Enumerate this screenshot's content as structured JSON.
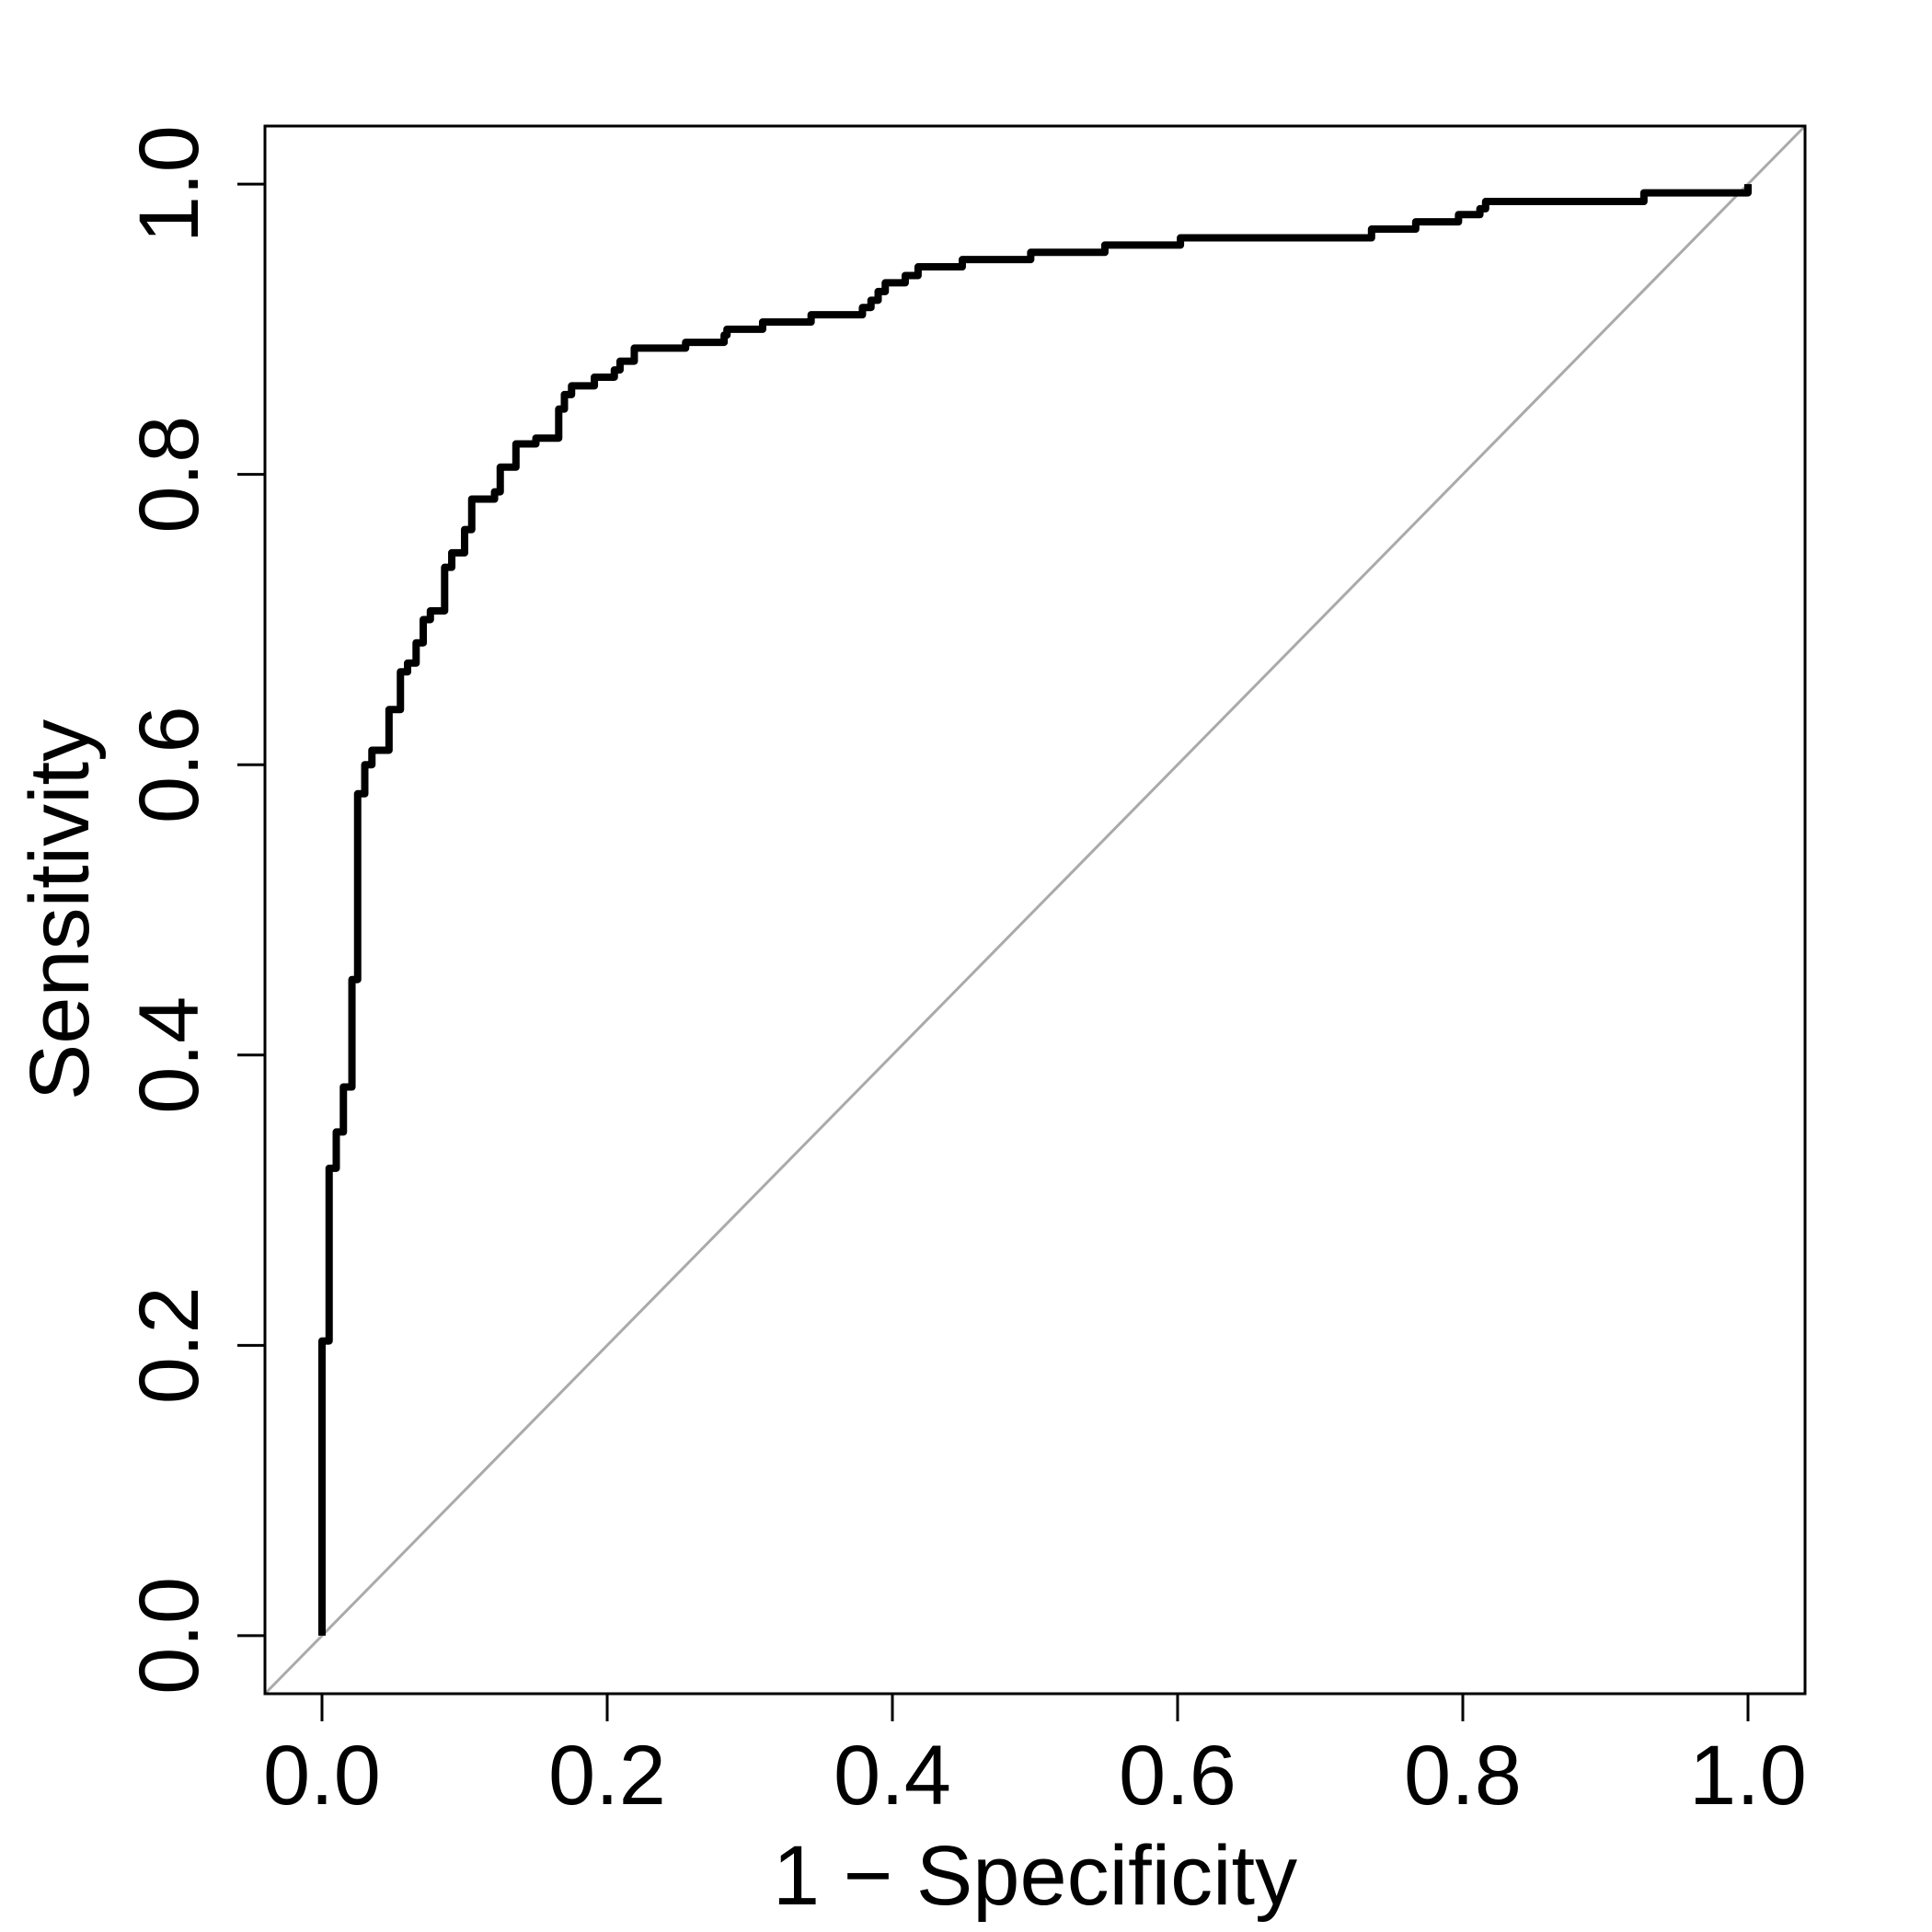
{
  "chart_data": {
    "type": "line",
    "x_label": "1 − Specificity",
    "y_label": "Sensitivity",
    "xlim": [
      -0.04,
      1.04
    ],
    "ylim": [
      -0.04,
      1.04
    ],
    "xticks": [
      {
        "value": 0,
        "label": "0.0"
      },
      0.2,
      0.4,
      0.6,
      0.8,
      {
        "value": 1,
        "label": "1.0"
      }
    ],
    "yticks": [
      {
        "value": 0,
        "label": "0.0"
      },
      0.2,
      0.4,
      0.6,
      0.8,
      {
        "value": 1,
        "label": "1.0"
      }
    ],
    "reference_color": "#aaaaaa",
    "series": [
      {
        "color": "#000000",
        "x": [
          0,
          0,
          0.005,
          0.005,
          0.01,
          0.01,
          0.015,
          0.015,
          0.021,
          0.021,
          0.025,
          0.025,
          0.03,
          0.03,
          0.035,
          0.035,
          0.047,
          0.047,
          0.055,
          0.055,
          0.06,
          0.06,
          0.066,
          0.066,
          0.071,
          0.071,
          0.076,
          0.076,
          0.086,
          0.086,
          0.091,
          0.091,
          0.1,
          0.1,
          0.105,
          0.105,
          0.121,
          0.121,
          0.125,
          0.125,
          0.136,
          0.136,
          0.15,
          0.15,
          0.166,
          0.166,
          0.17,
          0.17,
          0.175,
          0.175,
          0.191,
          0.191,
          0.205,
          0.205,
          0.209,
          0.209,
          0.219,
          0.219,
          0.255,
          0.255,
          0.282,
          0.282,
          0.284,
          0.284,
          0.309,
          0.309,
          0.343,
          0.343,
          0.379,
          0.379,
          0.385,
          0.385,
          0.39,
          0.39,
          0.395,
          0.395,
          0.409,
          0.409,
          0.418,
          0.418,
          0.449,
          0.449,
          0.497,
          0.497,
          0.549,
          0.549,
          0.602,
          0.602,
          0.736,
          0.736,
          0.767,
          0.767,
          0.797,
          0.797,
          0.812,
          0.812,
          0.816,
          0.816,
          0.927,
          0.927,
          1,
          1
        ],
        "values": [
          0,
          0.203,
          0.203,
          0.322,
          0.322,
          0.347,
          0.347,
          0.378,
          0.378,
          0.452,
          0.452,
          0.58,
          0.58,
          0.6,
          0.6,
          0.61,
          0.61,
          0.638,
          0.638,
          0.664,
          0.664,
          0.67,
          0.67,
          0.684,
          0.684,
          0.7,
          0.7,
          0.706,
          0.706,
          0.736,
          0.736,
          0.746,
          0.746,
          0.762,
          0.762,
          0.783,
          0.783,
          0.788,
          0.788,
          0.805,
          0.805,
          0.821,
          0.821,
          0.825,
          0.825,
          0.845,
          0.845,
          0.855,
          0.855,
          0.861,
          0.861,
          0.867,
          0.867,
          0.872,
          0.872,
          0.878,
          0.878,
          0.887,
          0.887,
          0.891,
          0.891,
          0.896,
          0.896,
          0.9,
          0.9,
          0.905,
          0.905,
          0.91,
          0.91,
          0.915,
          0.915,
          0.92,
          0.92,
          0.926,
          0.926,
          0.932,
          0.932,
          0.937,
          0.937,
          0.943,
          0.943,
          0.948,
          0.948,
          0.953,
          0.953,
          0.958,
          0.958,
          0.963,
          0.963,
          0.969,
          0.969,
          0.974,
          0.974,
          0.979,
          0.979,
          0.983,
          0.983,
          0.988,
          0.988,
          0.994,
          0.994,
          1
        ]
      }
    ]
  }
}
